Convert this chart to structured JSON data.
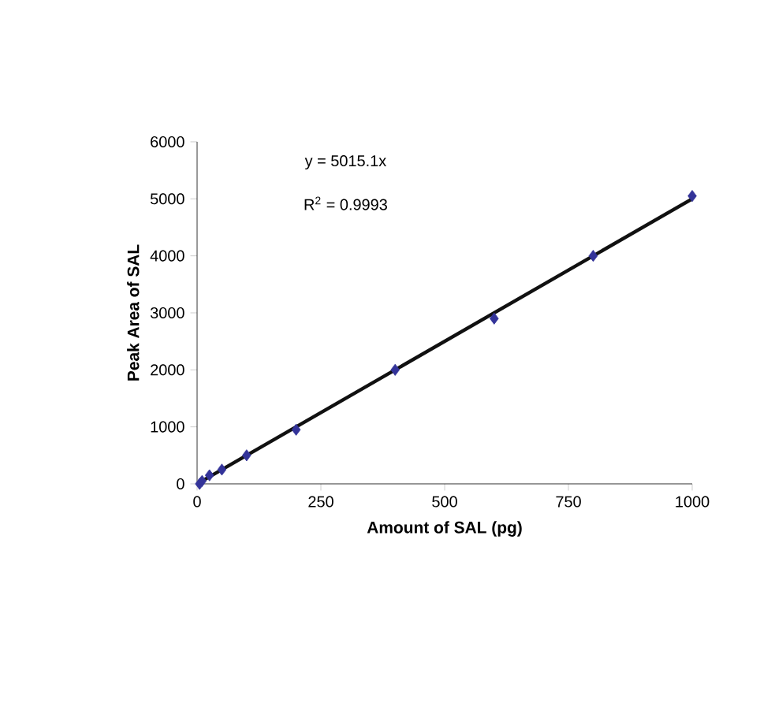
{
  "chart_data": {
    "type": "scatter",
    "xlabel": "Amount of SAL (pg)",
    "ylabel": "Peak Area of SAL",
    "annotations": [
      "y = 5015.1x",
      "R$^{2}$ = 0.9993"
    ],
    "series": [
      {
        "color": "#333399",
        "marker": "diamond",
        "x": [
          5,
          10,
          25,
          50,
          100,
          200,
          400,
          600,
          800,
          1000
        ],
        "values": [
          0,
          50,
          150,
          250,
          500,
          950,
          2000,
          2900,
          4000,
          5050
        ]
      },
      {
        "type": "line",
        "color": "#111111",
        "marker": "none",
        "line_style": "solid",
        "x": [
          10,
          1000
        ],
        "values": [
          50,
          5000
        ]
      }
    ],
    "xlim": [
      0,
      1000
    ],
    "ylim": [
      0,
      6000
    ],
    "xticks": [
      0,
      250,
      500,
      750,
      1000
    ],
    "yticks": [
      0,
      1000,
      2000,
      3000,
      4000,
      5000,
      6000
    ],
    "grid": false
  }
}
